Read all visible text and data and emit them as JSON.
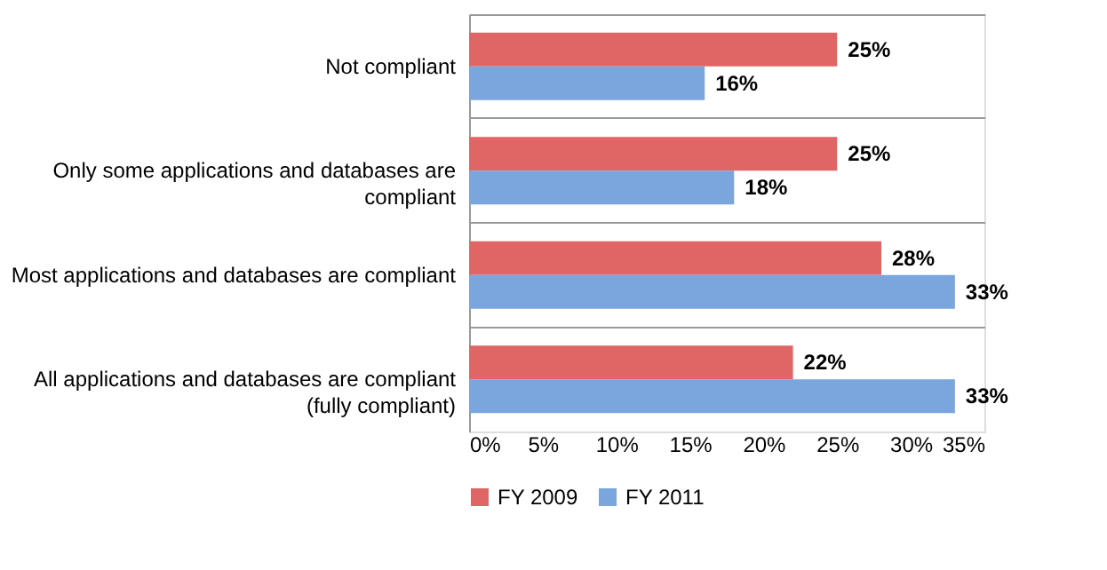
{
  "chart_data": {
    "type": "bar",
    "orientation": "horizontal",
    "categories": [
      "Not compliant",
      "Only some applications and databases are compliant",
      "Most applications and databases are compliant",
      "All applications and databases are compliant (fully compliant)"
    ],
    "series": [
      {
        "name": "FY 2009",
        "color": "#e06666",
        "values": [
          25,
          25,
          28,
          22
        ],
        "value_labels": [
          "25%",
          "25%",
          "28%",
          "22%"
        ]
      },
      {
        "name": "FY 2011",
        "color": "#7aa5dd",
        "values": [
          16,
          18,
          33,
          33
        ],
        "value_labels": [
          "16%",
          "18%",
          "33%",
          "33%"
        ]
      }
    ],
    "xlim": [
      0,
      35
    ],
    "xticks": [
      {
        "value": 0,
        "label": "0%"
      },
      {
        "value": 5,
        "label": "5%"
      },
      {
        "value": 10,
        "label": "10%"
      },
      {
        "value": 15,
        "label": "15%"
      },
      {
        "value": 20,
        "label": "20%"
      },
      {
        "value": 25,
        "label": "25%"
      },
      {
        "value": 30,
        "label": "30%"
      },
      {
        "value": 35,
        "label": "35%"
      }
    ],
    "grid": "y",
    "legend": "bottom"
  }
}
